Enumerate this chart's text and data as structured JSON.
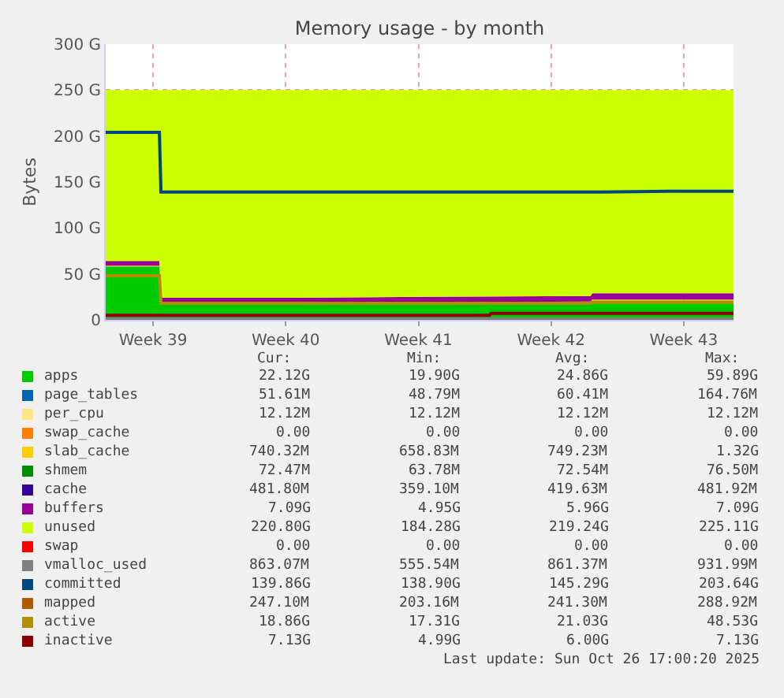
{
  "chart_data": {
    "type": "area",
    "title": "Memory usage - by month",
    "ylabel": "Bytes",
    "stacked": true,
    "grid": true,
    "legend": "bottom",
    "x": [
      "2025-09-23T14:00",
      "2025-09-26T10:00",
      "2025-09-26T12:00",
      "2025-10-03T02:00",
      "2025-10-10T02:00",
      "2025-10-19T04:00",
      "2025-10-19T06:00",
      "2025-10-23T09:00",
      "2025-10-26T17:00"
    ],
    "xlim": [
      "2025-09-23T14:00",
      "2025-10-26T17:00"
    ],
    "xticks": [
      {
        "value": "2025-09-26T02:00",
        "label": "Week 39"
      },
      {
        "value": "2025-10-03T02:00",
        "label": "Week 40"
      },
      {
        "value": "2025-10-10T02:00",
        "label": "Week 41"
      },
      {
        "value": "2025-10-17T02:00",
        "label": "Week 42"
      },
      {
        "value": "2025-10-24T02:00",
        "label": "Week 43"
      }
    ],
    "ylim": [
      0,
      300
    ],
    "yticks": [
      {
        "value": 0,
        "label": "0"
      },
      {
        "value": 50,
        "label": "50 G"
      },
      {
        "value": 100,
        "label": "100 G"
      },
      {
        "value": 150,
        "label": "150 G"
      },
      {
        "value": 200,
        "label": "200 G"
      },
      {
        "value": 250,
        "label": "250 G"
      },
      {
        "value": 300,
        "label": "300 G"
      }
    ],
    "series": [
      {
        "name": "apps",
        "color": "#00cc00",
        "values": [
          58,
          58,
          18,
          18,
          18,
          19,
          21,
          21,
          21
        ]
      },
      {
        "name": "page_tables",
        "color": "#0066b3",
        "values": [
          null,
          null,
          null,
          null,
          null,
          null,
          null,
          null,
          null
        ]
      },
      {
        "name": "per_cpu",
        "color": "#ffe680",
        "values": [
          null,
          null,
          null,
          null,
          null,
          null,
          null,
          null,
          null
        ]
      },
      {
        "name": "swap_cache",
        "color": "#ff8000",
        "values": [
          null,
          null,
          null,
          null,
          null,
          null,
          null,
          null,
          null
        ]
      },
      {
        "name": "slab_cache",
        "color": "#ffcc00",
        "values": [
          1,
          1,
          1,
          1,
          1,
          1,
          1,
          1,
          1
        ]
      },
      {
        "name": "shmem",
        "color": "#008f00",
        "values": [
          null,
          null,
          null,
          null,
          null,
          null,
          null,
          null,
          null
        ]
      },
      {
        "name": "cache",
        "color": "#330099",
        "values": [
          null,
          null,
          null,
          null,
          null,
          null,
          null,
          null,
          null
        ]
      },
      {
        "name": "buffers",
        "color": "#990099",
        "values": [
          5,
          5,
          5,
          5,
          6,
          6,
          7,
          7,
          7
        ]
      },
      {
        "name": "unused",
        "color": "#ccff00",
        "values": [
          186,
          186,
          226,
          226,
          225,
          224,
          221,
          221,
          221
        ]
      },
      {
        "name": "swap",
        "color": "#ff0000",
        "values": [
          null,
          null,
          null,
          null,
          null,
          null,
          null,
          null,
          null
        ]
      },
      {
        "name": "vmalloc_used",
        "type": "line",
        "color": "#808080",
        "values": [
          1,
          1,
          1,
          1,
          1,
          1,
          1,
          1,
          1
        ]
      },
      {
        "name": "committed",
        "type": "line",
        "color": "#00487d",
        "values": [
          204,
          204,
          139,
          139,
          139,
          139,
          139,
          140,
          140
        ]
      },
      {
        "name": "mapped",
        "type": "line",
        "color": "#b35a00",
        "values": [
          null,
          null,
          null,
          null,
          null,
          null,
          null,
          null,
          null
        ]
      },
      {
        "name": "active",
        "type": "line",
        "color": "#b38f00",
        "values": [
          48,
          48,
          18,
          18,
          18,
          18,
          19,
          19,
          19
        ]
      },
      {
        "name": "inactive",
        "type": "line",
        "color": "#8f0000",
        "x": [
          "2025-09-23T14:00",
          "2025-10-13T20:00",
          "2025-10-13T22:00",
          "2025-10-26T17:00"
        ],
        "values": [
          5,
          5,
          7,
          7
        ]
      }
    ],
    "annotations": [
      "Cur:",
      "Min:",
      "Avg:",
      "Max:",
      "22.12G",
      "19.90G",
      "24.86G",
      "59.89G",
      "51.61M",
      "48.79M",
      "60.41M",
      "164.76M",
      "12.12M",
      "12.12M",
      "12.12M",
      "12.12M",
      "0.00",
      "0.00",
      "0.00",
      "0.00",
      "740.32M",
      "658.83M",
      "749.23M",
      "1.32G",
      "72.47M",
      "63.78M",
      "72.54M",
      "76.50M",
      "481.80M",
      "359.10M",
      "419.63M",
      "481.92M",
      "7.09G",
      "4.95G",
      "5.96G",
      "7.09G",
      "220.80G",
      "184.28G",
      "219.24G",
      "225.11G",
      "0.00",
      "0.00",
      "0.00",
      "0.00",
      "863.07M",
      "555.54M",
      "861.37M",
      "931.99M",
      "139.86G",
      "138.90G",
      "145.29G",
      "203.64G",
      "247.10M",
      "203.16M",
      "241.30M",
      "288.92M",
      "18.86G",
      "17.31G",
      "21.03G",
      "48.53G",
      "7.13G",
      "4.99G",
      "6.00G",
      "7.13G",
      "Last update: Sun Oct 26 17:00:20 2025"
    ]
  }
}
